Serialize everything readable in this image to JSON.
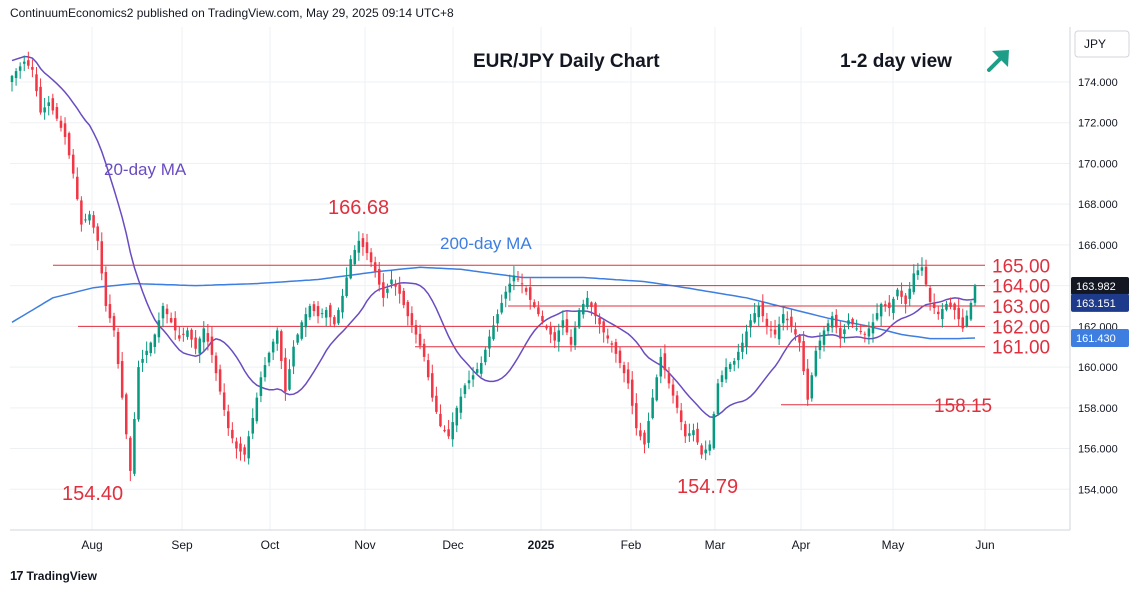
{
  "header": {
    "publisher_line": "ContinuumEconomics2 published on TradingView.com, May 29, 2025 09:14 UTC+8"
  },
  "brand": {
    "name": "TradingView",
    "logo_icon": "tradingview-logo-icon"
  },
  "colors": {
    "up": "#089981",
    "down": "#f23645",
    "ma20": "#6a4cc1",
    "ma200": "#3d7ee0",
    "level": "#e0303e",
    "annotation": "#e0303e",
    "arrow": "#1e9e88",
    "grid": "#eef0f3"
  },
  "chart_data": {
    "type": "candlestick",
    "title": "EUR/JPY Daily Chart",
    "subtitle": "1-2 day view",
    "view_icon": "up-right-arrow-icon",
    "currency": "JPY",
    "x_ticks": [
      "Aug",
      "Sep",
      "Oct",
      "Nov",
      "Dec",
      "2025",
      "Feb",
      "Mar",
      "Apr",
      "May",
      "Jun"
    ],
    "y_ticks": [
      "174.000",
      "172.000",
      "170.000",
      "168.000",
      "166.000",
      "164.000",
      "162.000",
      "160.000",
      "158.000",
      "156.000",
      "154.000"
    ],
    "ylim": [
      152.0,
      176.7
    ],
    "price_labels": [
      {
        "value": 163.982,
        "text": "163.982",
        "style": "dark"
      },
      {
        "value": 163.151,
        "text": "163.151",
        "style": "blue"
      },
      {
        "value": 161.43,
        "text": "161.430",
        "style": "blue"
      }
    ],
    "levels": [
      {
        "value": 165.0,
        "label": "165.00"
      },
      {
        "value": 164.0,
        "label": "164.00"
      },
      {
        "value": 163.0,
        "label": "163.00"
      },
      {
        "value": 162.0,
        "label": "162.00"
      },
      {
        "value": 161.0,
        "label": "161.00"
      },
      {
        "value": 158.15,
        "label": "158.15"
      }
    ],
    "annotations": [
      {
        "text": "166.68",
        "value": 166.68
      },
      {
        "text": "154.40",
        "value": 154.4
      },
      {
        "text": "154.79",
        "value": 154.79
      }
    ],
    "series_labels": [
      {
        "text": "20-day MA"
      },
      {
        "text": "200-day MA"
      }
    ],
    "close_anchors": [
      [
        0,
        174.3
      ],
      [
        3,
        175.0
      ],
      [
        5,
        174.6
      ],
      [
        7,
        172.5
      ],
      [
        9,
        173.0
      ],
      [
        11,
        172.2
      ],
      [
        13,
        171.3
      ],
      [
        15,
        169.5
      ],
      [
        17,
        167.0
      ],
      [
        19,
        167.5
      ],
      [
        21,
        166.2
      ],
      [
        23,
        163.0
      ],
      [
        25,
        161.8
      ],
      [
        27,
        158.5
      ],
      [
        29,
        154.9
      ],
      [
        31,
        160.0
      ],
      [
        33,
        160.8
      ],
      [
        35,
        161.6
      ],
      [
        37,
        163.0
      ],
      [
        39,
        162.2
      ],
      [
        41,
        161.4
      ],
      [
        43,
        161.8
      ],
      [
        45,
        160.9
      ],
      [
        47,
        161.9
      ],
      [
        49,
        160.6
      ],
      [
        51,
        158.8
      ],
      [
        53,
        157.0
      ],
      [
        55,
        156.0
      ],
      [
        57,
        155.7
      ],
      [
        59,
        157.5
      ],
      [
        61,
        159.5
      ],
      [
        63,
        160.7
      ],
      [
        65,
        161.8
      ],
      [
        67,
        158.8
      ],
      [
        69,
        161.0
      ],
      [
        71,
        162.2
      ],
      [
        73,
        163.0
      ],
      [
        75,
        162.5
      ],
      [
        77,
        162.8
      ],
      [
        79,
        162.1
      ],
      [
        81,
        163.5
      ],
      [
        83,
        165.3
      ],
      [
        85,
        166.2
      ],
      [
        87,
        165.6
      ],
      [
        89,
        164.7
      ],
      [
        91,
        163.4
      ],
      [
        93,
        164.3
      ],
      [
        95,
        163.6
      ],
      [
        97,
        162.5
      ],
      [
        99,
        161.6
      ],
      [
        101,
        160.5
      ],
      [
        103,
        158.5
      ],
      [
        105,
        157.1
      ],
      [
        107,
        156.6
      ],
      [
        109,
        158.0
      ],
      [
        111,
        159.1
      ],
      [
        113,
        159.6
      ],
      [
        115,
        160.2
      ],
      [
        117,
        161.5
      ],
      [
        119,
        162.6
      ],
      [
        121,
        163.7
      ],
      [
        123,
        164.5
      ],
      [
        125,
        164.1
      ],
      [
        127,
        163.3
      ],
      [
        129,
        162.6
      ],
      [
        131,
        161.9
      ],
      [
        133,
        161.3
      ],
      [
        135,
        162.3
      ],
      [
        137,
        161.1
      ],
      [
        139,
        162.8
      ],
      [
        141,
        163.4
      ],
      [
        143,
        162.5
      ],
      [
        145,
        161.7
      ],
      [
        147,
        161.1
      ],
      [
        149,
        160.2
      ],
      [
        151,
        159.2
      ],
      [
        153,
        157.0
      ],
      [
        155,
        156.2
      ],
      [
        157,
        158.5
      ],
      [
        159,
        160.5
      ],
      [
        161,
        159.2
      ],
      [
        163,
        158.0
      ],
      [
        165,
        156.6
      ],
      [
        167,
        156.9
      ],
      [
        169,
        155.7
      ],
      [
        171,
        156.2
      ],
      [
        173,
        159.2
      ],
      [
        175,
        160.0
      ],
      [
        177,
        160.3
      ],
      [
        179,
        161.2
      ],
      [
        181,
        162.3
      ],
      [
        183,
        163.0
      ],
      [
        185,
        162.0
      ],
      [
        187,
        161.6
      ],
      [
        189,
        162.6
      ],
      [
        191,
        162.0
      ],
      [
        193,
        161.2
      ],
      [
        195,
        158.4
      ],
      [
        197,
        160.8
      ],
      [
        199,
        161.8
      ],
      [
        201,
        162.5
      ],
      [
        203,
        161.4
      ],
      [
        205,
        162.3
      ],
      [
        207,
        161.9
      ],
      [
        209,
        161.6
      ],
      [
        211,
        162.2
      ],
      [
        213,
        163.1
      ],
      [
        215,
        162.9
      ],
      [
        217,
        163.8
      ],
      [
        219,
        163.1
      ],
      [
        221,
        164.6
      ],
      [
        223,
        164.9
      ],
      [
        225,
        163.2
      ],
      [
        227,
        162.6
      ],
      [
        229,
        163.1
      ],
      [
        231,
        162.8
      ],
      [
        233,
        161.9
      ],
      [
        235,
        163.15
      ],
      [
        236,
        163.98
      ]
    ],
    "ma200_anchors": [
      [
        0,
        162.2
      ],
      [
        10,
        163.4
      ],
      [
        20,
        163.9
      ],
      [
        30,
        164.1
      ],
      [
        45,
        164.0
      ],
      [
        60,
        164.1
      ],
      [
        75,
        164.3
      ],
      [
        90,
        164.7
      ],
      [
        100,
        164.9
      ],
      [
        110,
        164.8
      ],
      [
        125,
        164.4
      ],
      [
        140,
        164.4
      ],
      [
        155,
        164.2
      ],
      [
        165,
        163.9
      ],
      [
        180,
        163.4
      ],
      [
        190,
        162.9
      ],
      [
        200,
        162.4
      ],
      [
        210,
        162.0
      ],
      [
        218,
        161.6
      ],
      [
        225,
        161.4
      ],
      [
        232,
        161.4
      ],
      [
        236,
        161.43
      ]
    ]
  }
}
